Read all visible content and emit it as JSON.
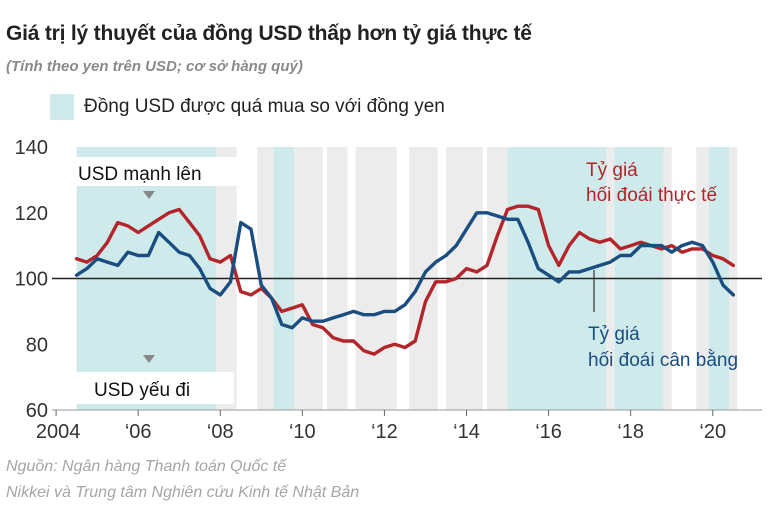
{
  "header": {
    "title": "Giá trị lý thuyết của đồng USD thấp hơn tỷ giá thực tế",
    "subtitle": "(Tính theo yen trên USD; cơ sở hàng quý)"
  },
  "legend": {
    "overvalued_label": "Đồng USD được quá mua so với đồng yen"
  },
  "source": {
    "line1": "Nguồn: Ngân hàng Thanh toán Quốc tế",
    "line2": "Nikkei và Trung tâm Nghiên cứu Kinh tế Nhật Bản"
  },
  "colors": {
    "actual": "#b3252b",
    "equilibrium": "#1a4d80",
    "shade_overvalued": "#cfeaea",
    "shade_gray": "#ececec",
    "zero_line": "#222222",
    "axis_text": "#333333"
  },
  "chart_data": {
    "type": "line",
    "ylim": [
      60,
      140
    ],
    "xlim": [
      2003.9,
      2021.2
    ],
    "yticks": [
      60,
      80,
      100,
      120,
      140
    ],
    "xticks": [
      {
        "value": 2004,
        "label": "2004"
      },
      {
        "value": 2006,
        "label": "‘06"
      },
      {
        "value": 2008,
        "label": "‘08"
      },
      {
        "value": 2010,
        "label": "‘10"
      },
      {
        "value": 2012,
        "label": "‘12"
      },
      {
        "value": 2014,
        "label": "‘14"
      },
      {
        "value": 2016,
        "label": "‘16"
      },
      {
        "value": 2018,
        "label": "‘18"
      },
      {
        "value": 2020,
        "label": "‘20"
      }
    ],
    "reference_line": 100,
    "annotations": {
      "strong": "USD mạnh lên",
      "weak": "USD yếu đi",
      "actual": [
        "Tỷ giá",
        "hối đoái thực tế"
      ],
      "equilibrium": [
        "Tỷ giá",
        "hối đoái cân bằng"
      ]
    },
    "overvalued_periods": [
      [
        2004.5,
        2007.9
      ],
      [
        2009.3,
        2009.8
      ],
      [
        2015.0,
        2017.4
      ],
      [
        2017.6,
        2018.8
      ],
      [
        2019.9,
        2020.4
      ]
    ],
    "gray_periods": [
      [
        2007.9,
        2008.4
      ],
      [
        2008.9,
        2009.3
      ],
      [
        2009.8,
        2010.5
      ],
      [
        2010.6,
        2011.1
      ],
      [
        2011.3,
        2012.3
      ],
      [
        2012.6,
        2013.3
      ],
      [
        2013.5,
        2014.4
      ],
      [
        2014.5,
        2015.0
      ],
      [
        2017.4,
        2017.6
      ],
      [
        2018.8,
        2019.0
      ],
      [
        2019.6,
        2019.9
      ],
      [
        2020.4,
        2020.6
      ]
    ],
    "series": [
      {
        "name": "Tỷ giá hối đoái thực tế",
        "x": [
          2004.5,
          2004.75,
          2005.0,
          2005.25,
          2005.5,
          2005.75,
          2006.0,
          2006.25,
          2006.5,
          2006.75,
          2007.0,
          2007.25,
          2007.5,
          2007.75,
          2008.0,
          2008.25,
          2008.5,
          2008.75,
          2009.0,
          2009.25,
          2009.5,
          2009.75,
          2010.0,
          2010.25,
          2010.5,
          2010.75,
          2011.0,
          2011.25,
          2011.5,
          2011.75,
          2012.0,
          2012.25,
          2012.5,
          2012.75,
          2013.0,
          2013.25,
          2013.5,
          2013.75,
          2014.0,
          2014.25,
          2014.5,
          2014.75,
          2015.0,
          2015.25,
          2015.5,
          2015.75,
          2016.0,
          2016.25,
          2016.5,
          2016.75,
          2017.0,
          2017.25,
          2017.5,
          2017.75,
          2018.0,
          2018.25,
          2018.5,
          2018.75,
          2019.0,
          2019.25,
          2019.5,
          2019.75,
          2020.0,
          2020.25,
          2020.5
        ],
        "values": [
          106,
          105,
          107,
          111,
          117,
          116,
          114,
          116,
          118,
          120,
          121,
          117,
          113,
          106,
          105,
          107,
          96,
          95,
          97,
          94,
          90,
          91,
          92,
          86,
          85,
          82,
          81,
          81,
          78,
          77,
          79,
          80,
          79,
          81,
          93,
          99,
          99,
          100,
          103,
          102,
          104,
          113,
          121,
          122,
          122,
          121,
          110,
          104,
          110,
          114,
          112,
          111,
          112,
          109,
          110,
          111,
          110,
          109,
          110,
          108,
          109,
          109,
          107,
          106,
          104
        ]
      },
      {
        "name": "Tỷ giá hối đoái cân bằng",
        "x": [
          2004.5,
          2004.75,
          2005.0,
          2005.25,
          2005.5,
          2005.75,
          2006.0,
          2006.25,
          2006.5,
          2006.75,
          2007.0,
          2007.25,
          2007.5,
          2007.75,
          2008.0,
          2008.25,
          2008.5,
          2008.75,
          2009.0,
          2009.25,
          2009.5,
          2009.75,
          2010.0,
          2010.25,
          2010.5,
          2010.75,
          2011.0,
          2011.25,
          2011.5,
          2011.75,
          2012.0,
          2012.25,
          2012.5,
          2012.75,
          2013.0,
          2013.25,
          2013.5,
          2013.75,
          2014.0,
          2014.25,
          2014.5,
          2014.75,
          2015.0,
          2015.25,
          2015.5,
          2015.75,
          2016.0,
          2016.25,
          2016.5,
          2016.75,
          2017.0,
          2017.25,
          2017.5,
          2017.75,
          2018.0,
          2018.25,
          2018.5,
          2018.75,
          2019.0,
          2019.25,
          2019.5,
          2019.75,
          2020.0,
          2020.25,
          2020.5
        ],
        "values": [
          101,
          103,
          106,
          105,
          104,
          108,
          107,
          107,
          114,
          111,
          108,
          107,
          103,
          97,
          95,
          99,
          117,
          115,
          98,
          94,
          86,
          85,
          88,
          87,
          87,
          88,
          89,
          90,
          89,
          89,
          90,
          90,
          92,
          96,
          102,
          105,
          107,
          110,
          115,
          120,
          120,
          119,
          118,
          118,
          111,
          103,
          101,
          99,
          102,
          102,
          103,
          104,
          105,
          107,
          107,
          110,
          110,
          110,
          108,
          110,
          111,
          110,
          105,
          98,
          95
        ]
      }
    ]
  }
}
